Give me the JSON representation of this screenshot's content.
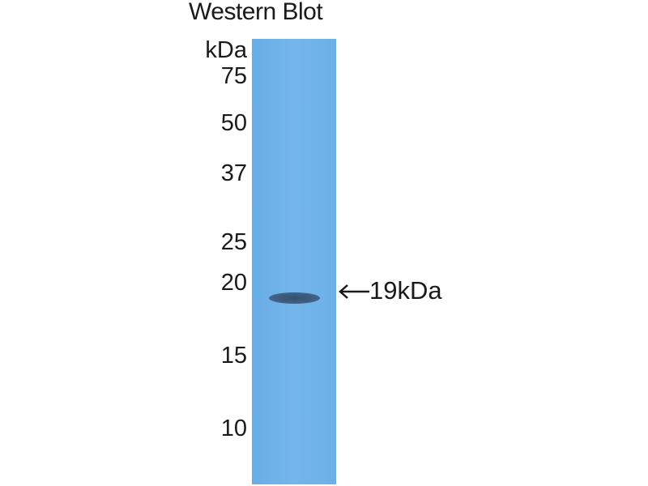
{
  "title": "Western Blot",
  "unit_label": "kDa",
  "markers": [
    "75",
    "50",
    "37",
    "25",
    "20",
    "15",
    "10"
  ],
  "band_label": "19kDa",
  "colors": {
    "lane": "#6fb2e8",
    "band": "#3f5d80"
  }
}
